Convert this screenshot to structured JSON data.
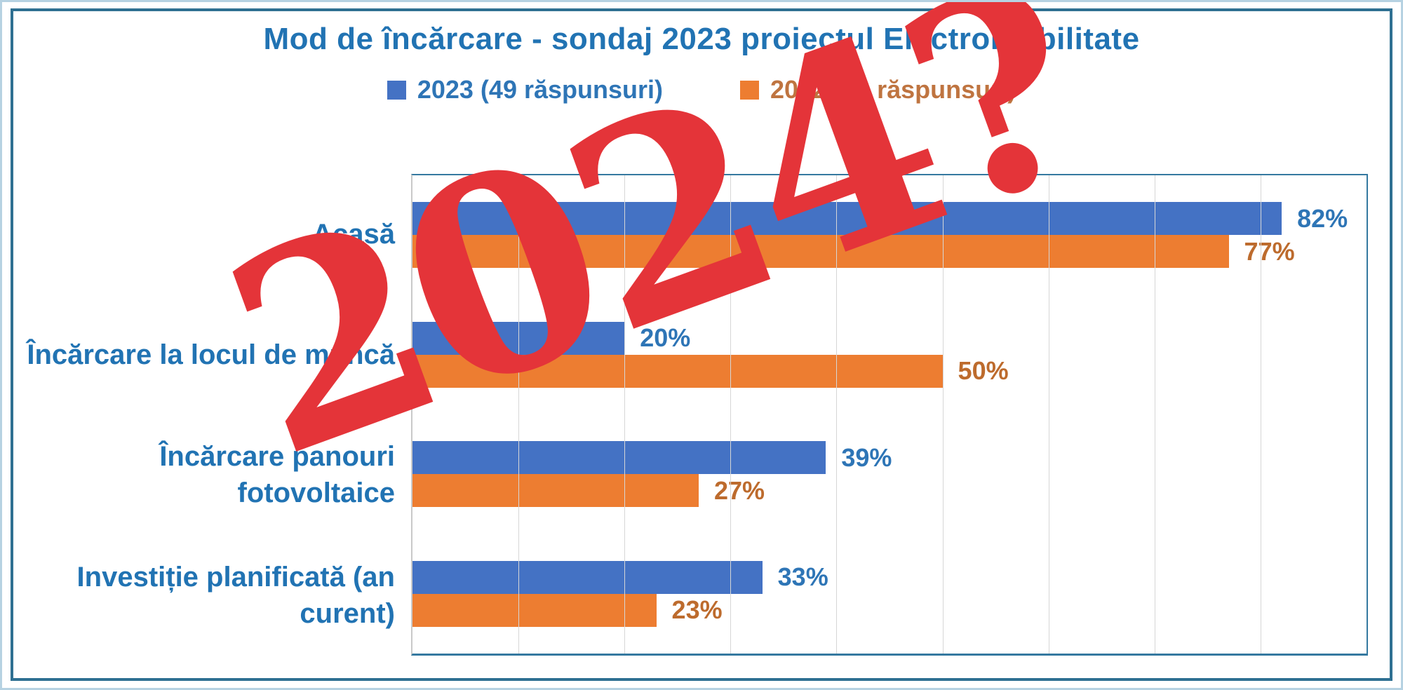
{
  "title": "Mod de încărcare - sondaj 2023 proiectul Electromobilitate",
  "legend": [
    {
      "label": "2023 (49 răspunsuri)",
      "swatch_color": "#4472c4",
      "text_color": "#2e75b6"
    },
    {
      "label": "2022 (26 răspunsuri)",
      "swatch_color": "#ed7d31",
      "text_color": "#bf7440"
    }
  ],
  "overlay": {
    "text": "2024?",
    "color": "#e43439"
  },
  "chart_data": {
    "type": "bar",
    "orientation": "horizontal",
    "title": "Mod de încărcare - sondaj 2023 proiectul Electromobilitate",
    "categories": [
      "Acasă",
      "Încărcare la locul de muncă",
      "Încărcare panouri fotovoltaice",
      "Investiție planificată (an curent)"
    ],
    "series": [
      {
        "name": "2023 (49 răspunsuri)",
        "color": "#4472c4",
        "label_color": "#2e75b6",
        "values": [
          82,
          20,
          39,
          33
        ],
        "labels": [
          "82%",
          "20%",
          "39%",
          "33%"
        ]
      },
      {
        "name": "2022 (26 răspunsuri)",
        "color": "#ed7d31",
        "label_color": "#bd6b2d",
        "values": [
          77,
          50,
          27,
          23
        ],
        "labels": [
          "77%",
          "50%",
          "27%",
          "23%"
        ]
      }
    ],
    "xlim": [
      0,
      90
    ],
    "gridline_step": 10,
    "grid": true,
    "legend_position": "top",
    "data_labels": true
  },
  "frame": {
    "outer_border_color": "#b6d2e2",
    "inner_border_color": "#2f7092"
  }
}
